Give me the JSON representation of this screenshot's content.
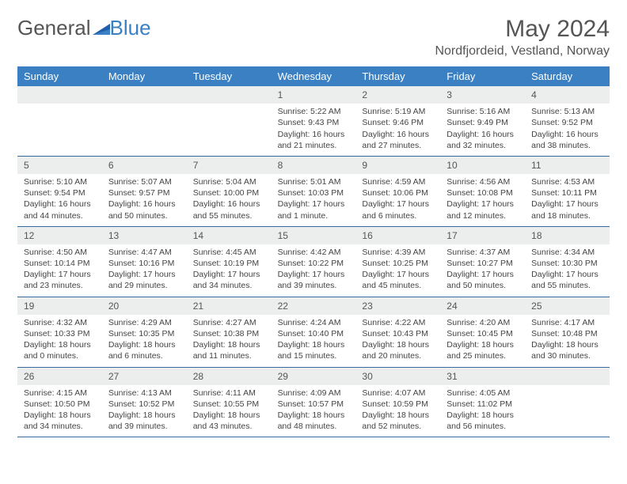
{
  "brand": {
    "part1": "General",
    "part2": "Blue"
  },
  "title": "May 2024",
  "location": "Nordfjordeid, Vestland, Norway",
  "header_bg": "#3a80c3",
  "text_color": "#444444",
  "days": [
    "Sunday",
    "Monday",
    "Tuesday",
    "Wednesday",
    "Thursday",
    "Friday",
    "Saturday"
  ],
  "weeks": [
    [
      {
        "n": "",
        "sr": "",
        "ss": "",
        "dl": ""
      },
      {
        "n": "",
        "sr": "",
        "ss": "",
        "dl": ""
      },
      {
        "n": "",
        "sr": "",
        "ss": "",
        "dl": ""
      },
      {
        "n": "1",
        "sr": "Sunrise: 5:22 AM",
        "ss": "Sunset: 9:43 PM",
        "dl": "Daylight: 16 hours and 21 minutes."
      },
      {
        "n": "2",
        "sr": "Sunrise: 5:19 AM",
        "ss": "Sunset: 9:46 PM",
        "dl": "Daylight: 16 hours and 27 minutes."
      },
      {
        "n": "3",
        "sr": "Sunrise: 5:16 AM",
        "ss": "Sunset: 9:49 PM",
        "dl": "Daylight: 16 hours and 32 minutes."
      },
      {
        "n": "4",
        "sr": "Sunrise: 5:13 AM",
        "ss": "Sunset: 9:52 PM",
        "dl": "Daylight: 16 hours and 38 minutes."
      }
    ],
    [
      {
        "n": "5",
        "sr": "Sunrise: 5:10 AM",
        "ss": "Sunset: 9:54 PM",
        "dl": "Daylight: 16 hours and 44 minutes."
      },
      {
        "n": "6",
        "sr": "Sunrise: 5:07 AM",
        "ss": "Sunset: 9:57 PM",
        "dl": "Daylight: 16 hours and 50 minutes."
      },
      {
        "n": "7",
        "sr": "Sunrise: 5:04 AM",
        "ss": "Sunset: 10:00 PM",
        "dl": "Daylight: 16 hours and 55 minutes."
      },
      {
        "n": "8",
        "sr": "Sunrise: 5:01 AM",
        "ss": "Sunset: 10:03 PM",
        "dl": "Daylight: 17 hours and 1 minute."
      },
      {
        "n": "9",
        "sr": "Sunrise: 4:59 AM",
        "ss": "Sunset: 10:06 PM",
        "dl": "Daylight: 17 hours and 6 minutes."
      },
      {
        "n": "10",
        "sr": "Sunrise: 4:56 AM",
        "ss": "Sunset: 10:08 PM",
        "dl": "Daylight: 17 hours and 12 minutes."
      },
      {
        "n": "11",
        "sr": "Sunrise: 4:53 AM",
        "ss": "Sunset: 10:11 PM",
        "dl": "Daylight: 17 hours and 18 minutes."
      }
    ],
    [
      {
        "n": "12",
        "sr": "Sunrise: 4:50 AM",
        "ss": "Sunset: 10:14 PM",
        "dl": "Daylight: 17 hours and 23 minutes."
      },
      {
        "n": "13",
        "sr": "Sunrise: 4:47 AM",
        "ss": "Sunset: 10:16 PM",
        "dl": "Daylight: 17 hours and 29 minutes."
      },
      {
        "n": "14",
        "sr": "Sunrise: 4:45 AM",
        "ss": "Sunset: 10:19 PM",
        "dl": "Daylight: 17 hours and 34 minutes."
      },
      {
        "n": "15",
        "sr": "Sunrise: 4:42 AM",
        "ss": "Sunset: 10:22 PM",
        "dl": "Daylight: 17 hours and 39 minutes."
      },
      {
        "n": "16",
        "sr": "Sunrise: 4:39 AM",
        "ss": "Sunset: 10:25 PM",
        "dl": "Daylight: 17 hours and 45 minutes."
      },
      {
        "n": "17",
        "sr": "Sunrise: 4:37 AM",
        "ss": "Sunset: 10:27 PM",
        "dl": "Daylight: 17 hours and 50 minutes."
      },
      {
        "n": "18",
        "sr": "Sunrise: 4:34 AM",
        "ss": "Sunset: 10:30 PM",
        "dl": "Daylight: 17 hours and 55 minutes."
      }
    ],
    [
      {
        "n": "19",
        "sr": "Sunrise: 4:32 AM",
        "ss": "Sunset: 10:33 PM",
        "dl": "Daylight: 18 hours and 0 minutes."
      },
      {
        "n": "20",
        "sr": "Sunrise: 4:29 AM",
        "ss": "Sunset: 10:35 PM",
        "dl": "Daylight: 18 hours and 6 minutes."
      },
      {
        "n": "21",
        "sr": "Sunrise: 4:27 AM",
        "ss": "Sunset: 10:38 PM",
        "dl": "Daylight: 18 hours and 11 minutes."
      },
      {
        "n": "22",
        "sr": "Sunrise: 4:24 AM",
        "ss": "Sunset: 10:40 PM",
        "dl": "Daylight: 18 hours and 15 minutes."
      },
      {
        "n": "23",
        "sr": "Sunrise: 4:22 AM",
        "ss": "Sunset: 10:43 PM",
        "dl": "Daylight: 18 hours and 20 minutes."
      },
      {
        "n": "24",
        "sr": "Sunrise: 4:20 AM",
        "ss": "Sunset: 10:45 PM",
        "dl": "Daylight: 18 hours and 25 minutes."
      },
      {
        "n": "25",
        "sr": "Sunrise: 4:17 AM",
        "ss": "Sunset: 10:48 PM",
        "dl": "Daylight: 18 hours and 30 minutes."
      }
    ],
    [
      {
        "n": "26",
        "sr": "Sunrise: 4:15 AM",
        "ss": "Sunset: 10:50 PM",
        "dl": "Daylight: 18 hours and 34 minutes."
      },
      {
        "n": "27",
        "sr": "Sunrise: 4:13 AM",
        "ss": "Sunset: 10:52 PM",
        "dl": "Daylight: 18 hours and 39 minutes."
      },
      {
        "n": "28",
        "sr": "Sunrise: 4:11 AM",
        "ss": "Sunset: 10:55 PM",
        "dl": "Daylight: 18 hours and 43 minutes."
      },
      {
        "n": "29",
        "sr": "Sunrise: 4:09 AM",
        "ss": "Sunset: 10:57 PM",
        "dl": "Daylight: 18 hours and 48 minutes."
      },
      {
        "n": "30",
        "sr": "Sunrise: 4:07 AM",
        "ss": "Sunset: 10:59 PM",
        "dl": "Daylight: 18 hours and 52 minutes."
      },
      {
        "n": "31",
        "sr": "Sunrise: 4:05 AM",
        "ss": "Sunset: 11:02 PM",
        "dl": "Daylight: 18 hours and 56 minutes."
      },
      {
        "n": "",
        "sr": "",
        "ss": "",
        "dl": ""
      }
    ]
  ]
}
